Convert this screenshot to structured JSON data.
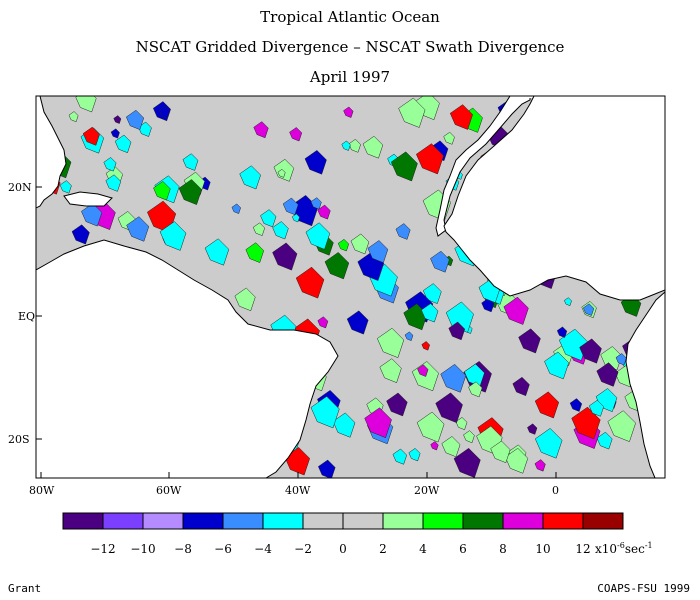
{
  "title_lines": [
    "Tropical Atlantic Ocean",
    "NSCAT Gridded Divergence – NSCAT Swath Divergence",
    "April 1997"
  ],
  "lat_labels": [
    "20N",
    "EQ",
    "20S"
  ],
  "lon_labels": [
    "80W",
    "60W",
    "40W",
    "20W",
    "0"
  ],
  "colorbar": {
    "colors": [
      "#4b0082",
      "#7b3fff",
      "#b58cff",
      "#0000cd",
      "#3a8dff",
      "#00ffff",
      "#cccccc",
      "#cccccc",
      "#99ff99",
      "#00ff00",
      "#007700",
      "#dd00dd",
      "#ff0000",
      "#990000"
    ],
    "tick_values": [
      "-12",
      "-10",
      "-8",
      "-6",
      "-4",
      "-2",
      "0",
      "2",
      "4",
      "6",
      "8",
      "10",
      "12"
    ],
    "units_prefix": "x10",
    "units_exponent": "-6",
    "units_suffix": "sec",
    "units_suffix_exponent": "-1"
  },
  "land_color": "#ffffff",
  "ocean_color": "#cccccc",
  "footer_left": "Grant",
  "footer_right": "COAPS-FSU 1999"
}
